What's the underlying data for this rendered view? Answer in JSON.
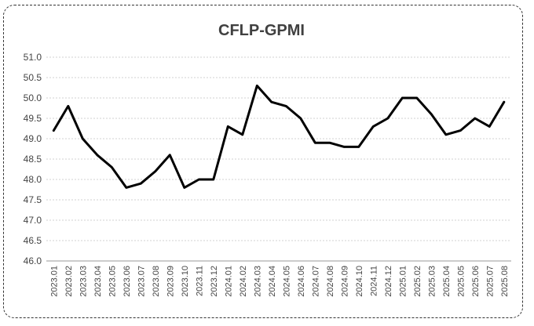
{
  "chart_data": {
    "type": "line",
    "title": "CFLP-GPMI",
    "xlabel": "",
    "ylabel": "",
    "ylim": [
      46.0,
      51.0
    ],
    "yticks": [
      "46.0",
      "46.5",
      "47.0",
      "47.5",
      "48.0",
      "48.5",
      "49.0",
      "49.5",
      "50.0",
      "50.5",
      "51.0"
    ],
    "grid": true,
    "legend": "none",
    "colors": {
      "line": "#000000",
      "grid": "#d0d0d0",
      "frame": "#333333"
    },
    "categories": [
      "2023.01",
      "2023.02",
      "2023.03",
      "2023.04",
      "2023.05",
      "2023.06",
      "2023.07",
      "2023.08",
      "2023.09",
      "2023.10",
      "2023.11",
      "2023.12",
      "2024.01",
      "2024.02",
      "2024.03",
      "2024.04",
      "2024.05",
      "2024.06",
      "2024.07",
      "2024.08",
      "2024.09",
      "2024.10",
      "2024.11",
      "2024.12",
      "2025.01",
      "2025.02",
      "2025.03",
      "2025.04",
      "2025.05",
      "2025.06",
      "2025.07",
      "2025.08"
    ],
    "series": [
      {
        "name": "",
        "values": [
          49.2,
          49.8,
          49.0,
          48.6,
          48.3,
          47.8,
          47.9,
          48.2,
          48.6,
          47.8,
          48.0,
          48.0,
          49.3,
          49.1,
          50.3,
          49.9,
          49.8,
          49.5,
          48.9,
          48.9,
          48.8,
          48.8,
          49.3,
          49.5,
          50.0,
          50.0,
          49.6,
          49.1,
          49.2,
          49.5,
          49.3,
          49.9
        ]
      }
    ]
  }
}
